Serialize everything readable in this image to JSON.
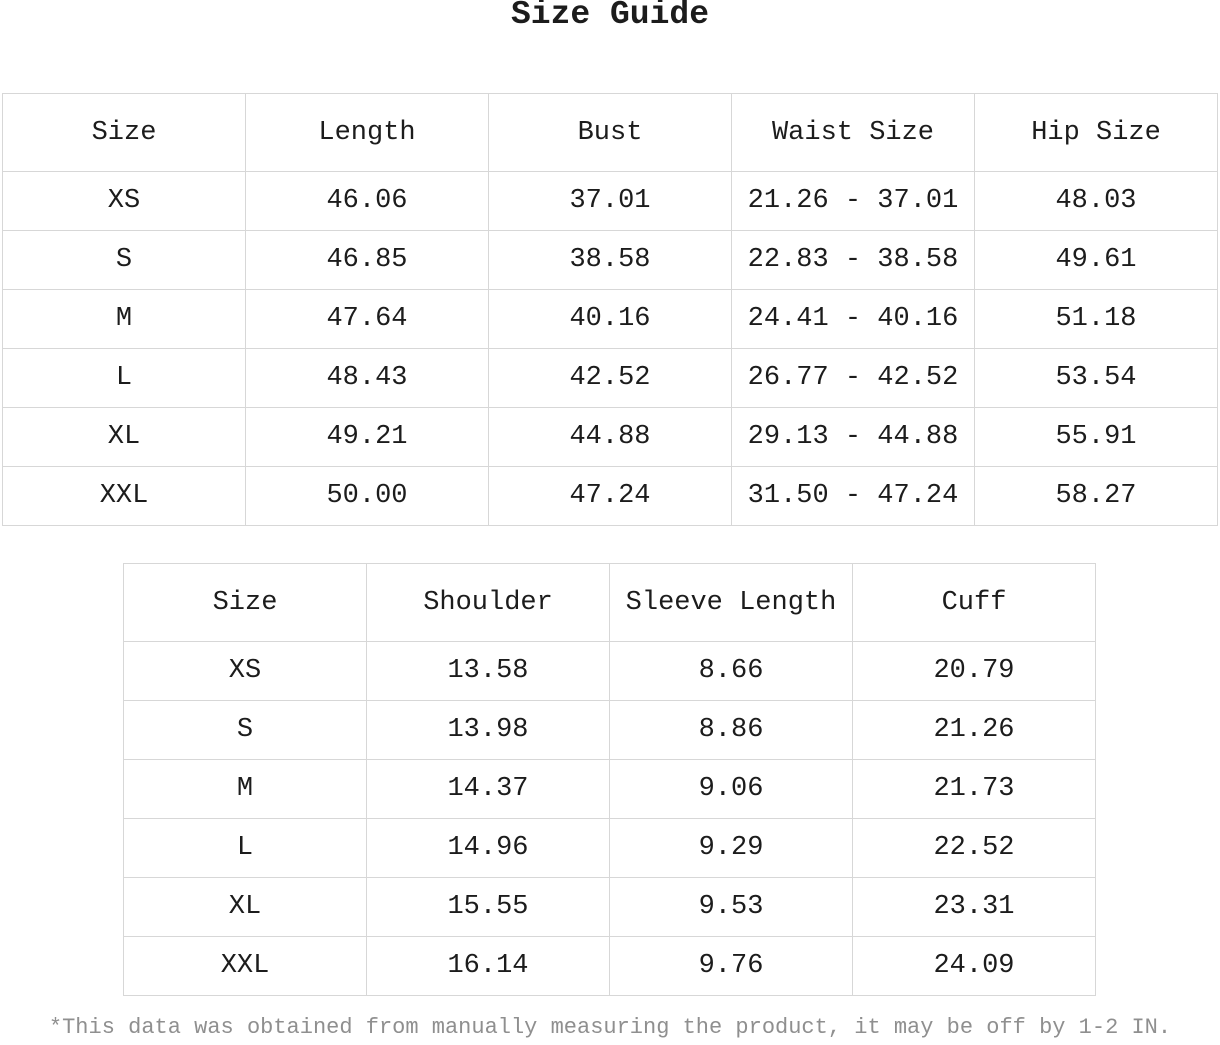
{
  "title": "Size Guide",
  "footnote": "*This data was obtained from manually measuring the product, it may be off by 1-2 IN.",
  "colors": {
    "background": "#ffffff",
    "text": "#1c1c1c",
    "border": "#d7d7d7",
    "footnote_text": "#8f8f8f"
  },
  "size_chart": {
    "headers": [
      "Size",
      "Length",
      "Bust",
      "Waist Size",
      "Hip Size"
    ],
    "rows": [
      [
        "XS",
        "46.06",
        "37.01",
        "21.26 - 37.01",
        "48.03"
      ],
      [
        "S",
        "46.85",
        "38.58",
        "22.83 - 38.58",
        "49.61"
      ],
      [
        "M",
        "47.64",
        "40.16",
        "24.41 - 40.16",
        "51.18"
      ],
      [
        "L",
        "48.43",
        "42.52",
        "26.77 - 42.52",
        "53.54"
      ],
      [
        "XL",
        "49.21",
        "44.88",
        "29.13 - 44.88",
        "55.91"
      ],
      [
        "XXL",
        "50.00",
        "47.24",
        "31.50 - 47.24",
        "58.27"
      ]
    ]
  },
  "sleeve_chart": {
    "headers": [
      "Size",
      "Shoulder",
      "Sleeve Length",
      "Cuff"
    ],
    "rows": [
      [
        "XS",
        "13.58",
        "8.66",
        "20.79"
      ],
      [
        "S",
        "13.98",
        "8.86",
        "21.26"
      ],
      [
        "M",
        "14.37",
        "9.06",
        "21.73"
      ],
      [
        "L",
        "14.96",
        "9.29",
        "22.52"
      ],
      [
        "XL",
        "15.55",
        "9.53",
        "23.31"
      ],
      [
        "XXL",
        "16.14",
        "9.76",
        "24.09"
      ]
    ]
  }
}
